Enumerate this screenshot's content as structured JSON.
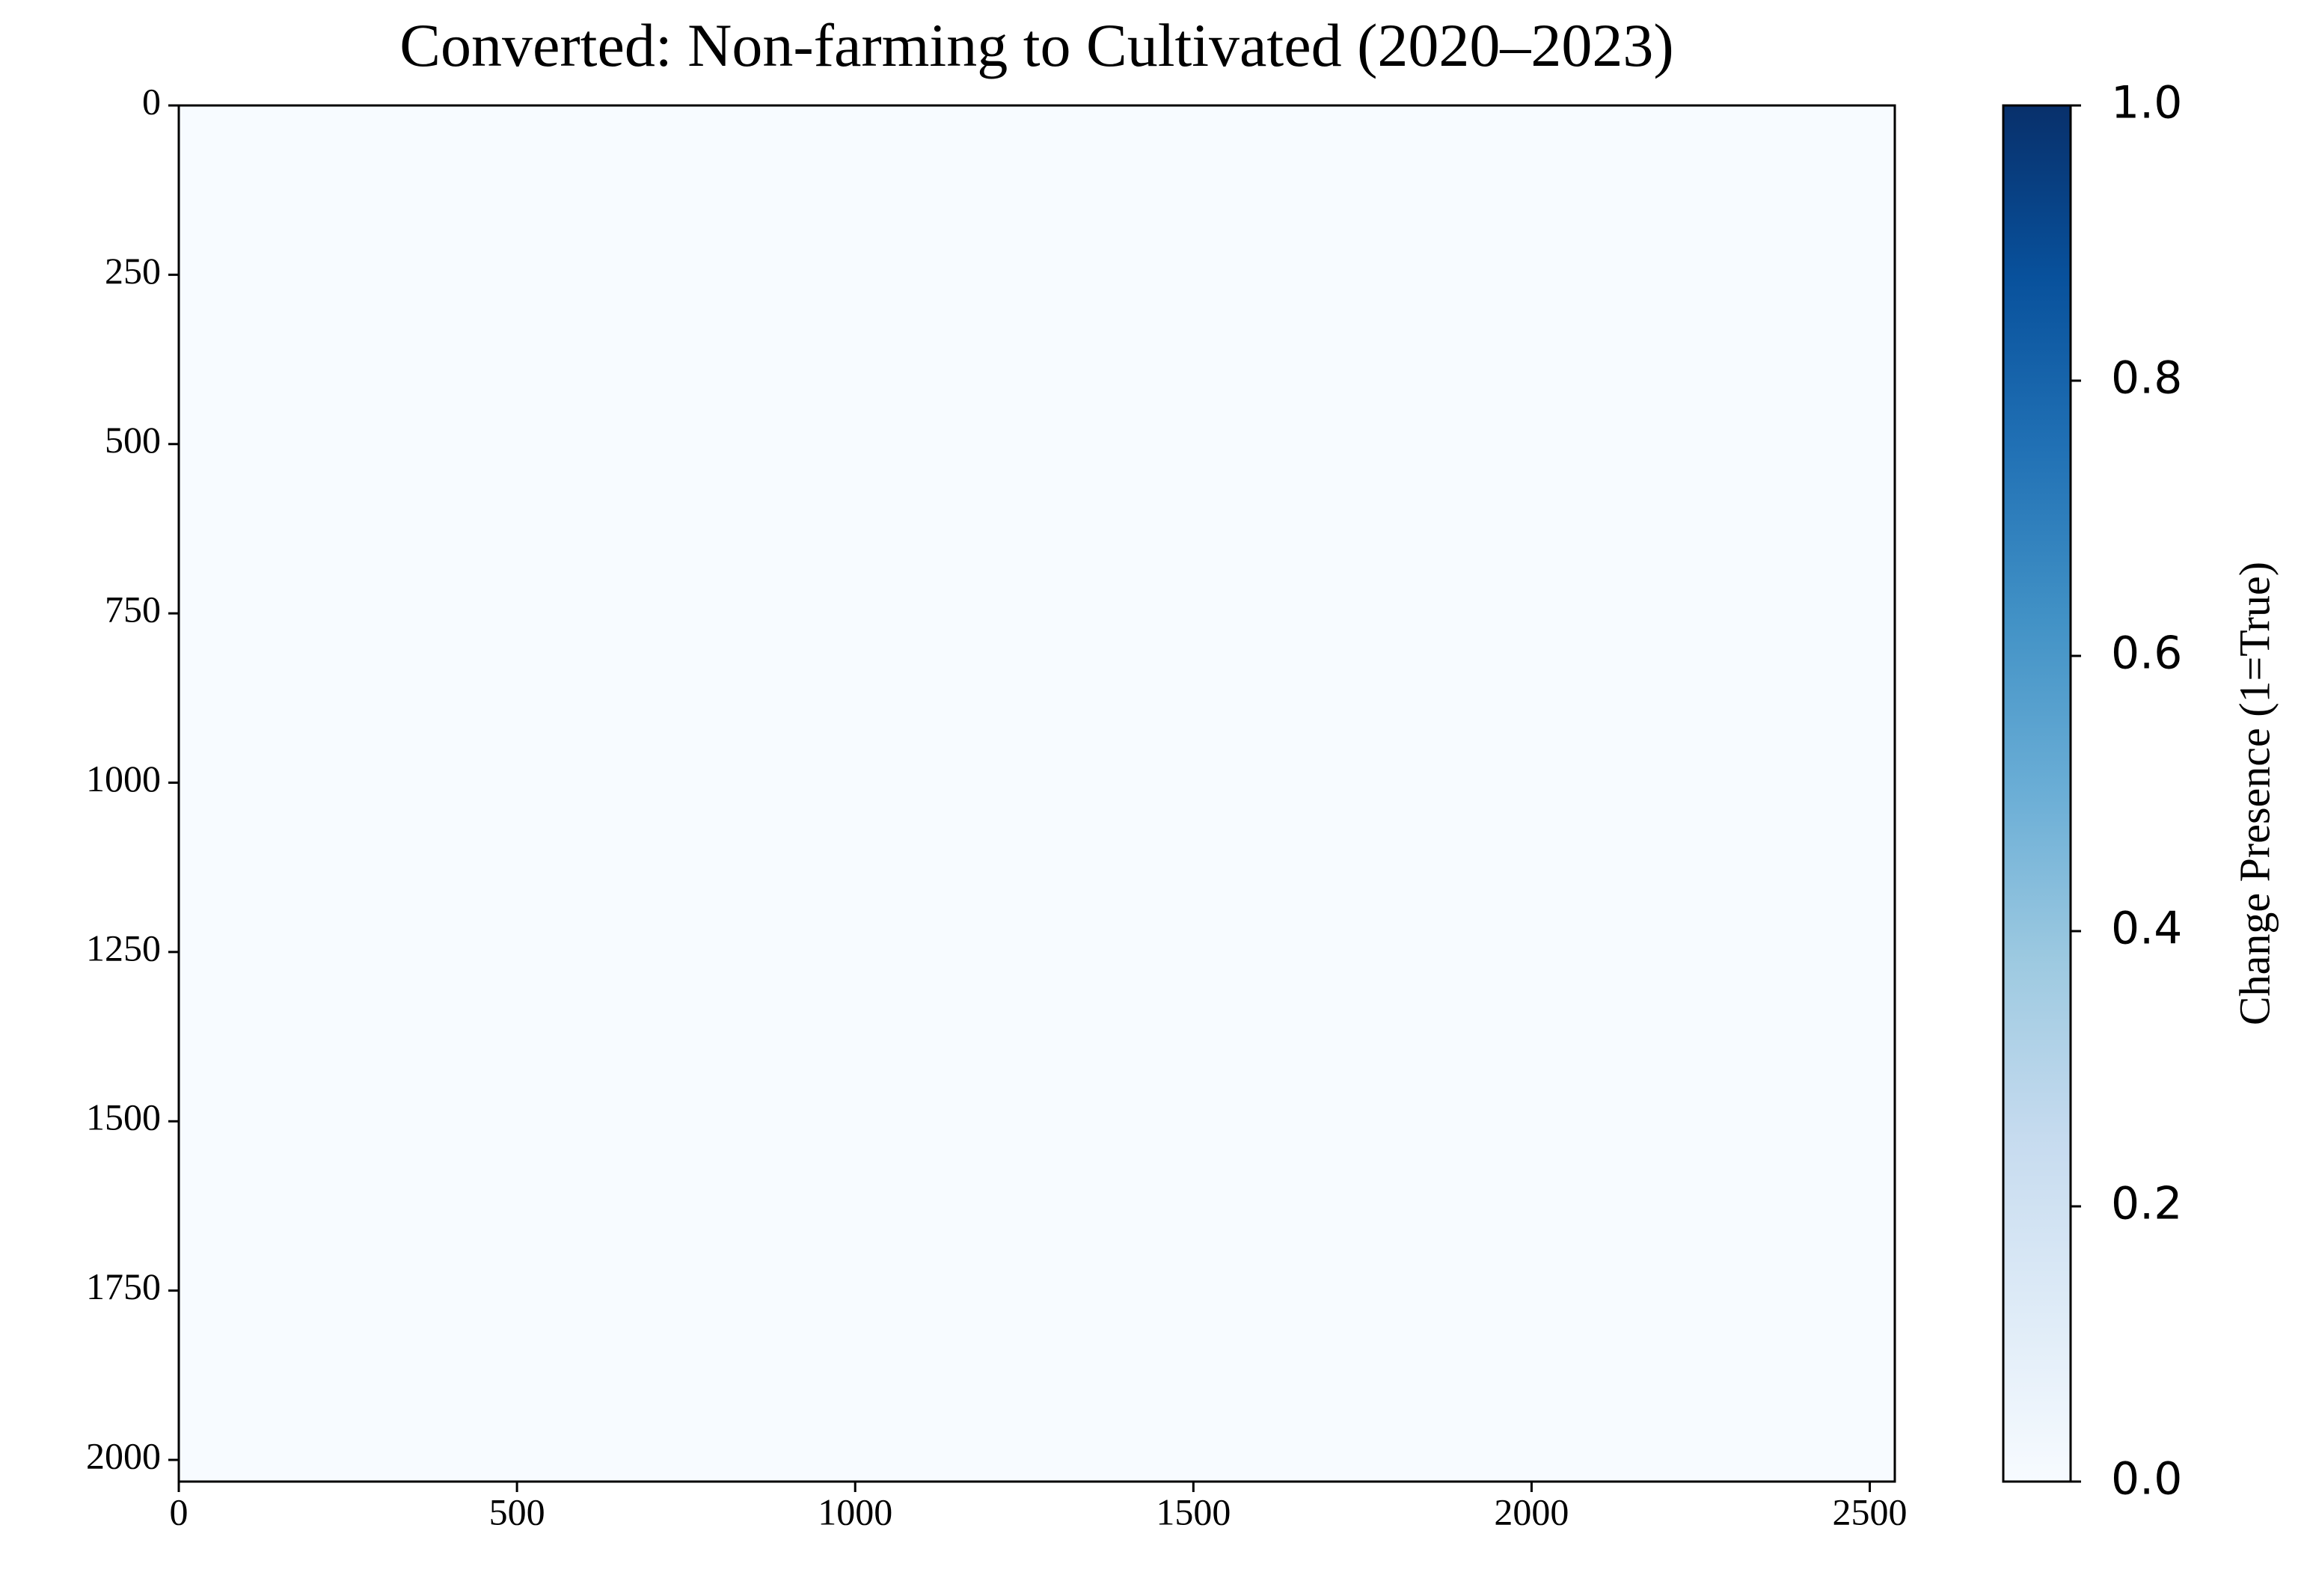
{
  "chart_data": {
    "type": "heatmap",
    "title": "Converted: Non-farming to Cultivated (2020–2023)",
    "xlim": [
      0,
      2537
    ],
    "ylim": [
      2032,
      0
    ],
    "xticks": [
      0,
      500,
      1000,
      1500,
      2000,
      2500
    ],
    "yticks": [
      0,
      250,
      500,
      750,
      1000,
      1250,
      1500,
      1750,
      2000
    ],
    "colormap": [
      "#f7fbff",
      "#deebf7",
      "#c6dbef",
      "#9ecae1",
      "#6baed6",
      "#4292c6",
      "#2171b5",
      "#08519c",
      "#08306b"
    ],
    "colorbar": {
      "label": "Change Presence (1=True)",
      "lim": [
        0,
        1
      ],
      "ticks": [
        {
          "value": 0,
          "label": "0.0"
        },
        {
          "value": 0.2,
          "label": "0.2"
        },
        {
          "value": 0.4,
          "label": "0.4"
        },
        {
          "value": 0.6,
          "label": "0.6"
        },
        {
          "value": 0.8,
          "label": "0.8"
        },
        {
          "value": 1,
          "label": "1.0"
        }
      ]
    }
  }
}
